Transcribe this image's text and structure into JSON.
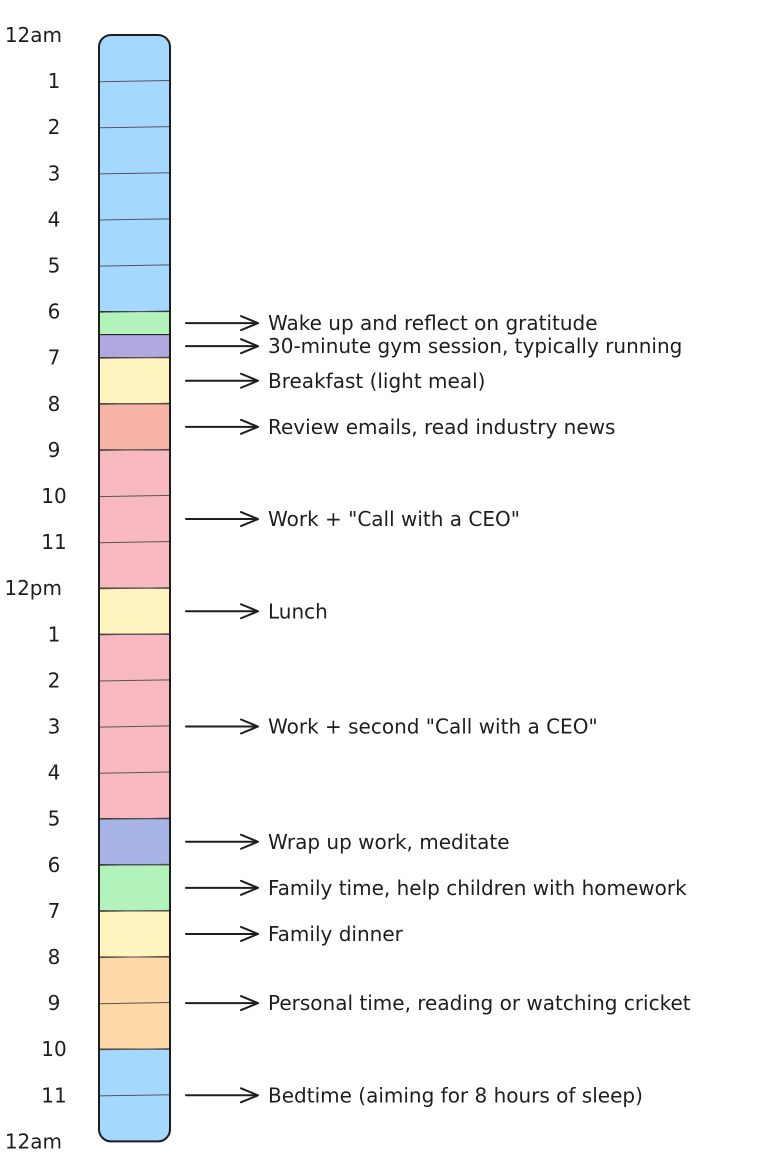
{
  "hours": [
    "12am",
    "1",
    "2",
    "3",
    "4",
    "5",
    "6",
    "7",
    "8",
    "9",
    "10",
    "11",
    "12pm",
    "1",
    "2",
    "3",
    "4",
    "5",
    "6",
    "7",
    "8",
    "9",
    "10",
    "11",
    "12am"
  ],
  "blocks": [
    {
      "start": 0,
      "end": 6,
      "color": "#a5d8ff",
      "label": "sleep-block"
    },
    {
      "start": 6,
      "end": 6.5,
      "color": "#b2f2bb",
      "label": "gratitude-block"
    },
    {
      "start": 6.5,
      "end": 7,
      "color": "#b0a8e0",
      "label": "gym-block"
    },
    {
      "start": 7,
      "end": 8,
      "color": "#fff3bf",
      "label": "breakfast-block"
    },
    {
      "start": 8,
      "end": 9,
      "color": "#f7b3a6",
      "label": "emails-block"
    },
    {
      "start": 9,
      "end": 12,
      "color": "#f8b8bf",
      "label": "morning-work-block"
    },
    {
      "start": 12,
      "end": 13,
      "color": "#fff3bf",
      "label": "lunch-block"
    },
    {
      "start": 13,
      "end": 17,
      "color": "#f8b8bf",
      "label": "afternoon-work-block"
    },
    {
      "start": 17,
      "end": 18,
      "color": "#a9b4e6",
      "label": "meditate-block"
    },
    {
      "start": 18,
      "end": 19,
      "color": "#b2f2bb",
      "label": "family-time-block"
    },
    {
      "start": 19,
      "end": 20,
      "color": "#fff3bf",
      "label": "dinner-block"
    },
    {
      "start": 20,
      "end": 22,
      "color": "#ffd8a8",
      "label": "personal-time-block"
    },
    {
      "start": 22,
      "end": 24,
      "color": "#a5d8ff",
      "label": "bedtime-block"
    }
  ],
  "annotations": [
    {
      "at": 6.25,
      "text": "Wake up and reflect on gratitude"
    },
    {
      "at": 6.75,
      "text": "30-minute gym session, typically running"
    },
    {
      "at": 7.5,
      "text": "Breakfast (light meal)"
    },
    {
      "at": 8.5,
      "text": "Review emails, read industry news"
    },
    {
      "at": 10.5,
      "text": "Work + \"Call with a CEO\""
    },
    {
      "at": 12.5,
      "text": "Lunch"
    },
    {
      "at": 15,
      "text": "Work + second \"Call with a CEO\""
    },
    {
      "at": 17.5,
      "text": "Wrap up work, meditate"
    },
    {
      "at": 18.5,
      "text": "Family time, help children with homework"
    },
    {
      "at": 19.5,
      "text": "Family dinner"
    },
    {
      "at": 21,
      "text": "Personal time, reading or watching cricket"
    },
    {
      "at": 23,
      "text": "Bedtime (aiming for 8 hours of sleep)"
    }
  ],
  "colors": {
    "stroke": "#1e1e1e",
    "divider": "#555555"
  }
}
